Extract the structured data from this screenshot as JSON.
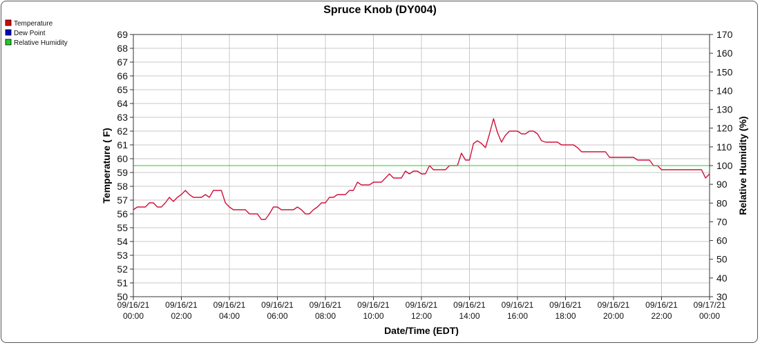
{
  "chart_data": {
    "type": "line",
    "title": "Spruce Knob (DY004)",
    "xlabel": "Date/Time (EDT)",
    "ylabel": "Temperature ( F)",
    "y2label": "Relative Humidity (%)",
    "ylim": [
      50,
      69
    ],
    "y2lim": [
      30,
      170
    ],
    "xlim": [
      "09/16/21 00:00",
      "09/17/21 00:00"
    ],
    "grid": true,
    "legend_position": "top-left",
    "x_ticks": [
      [
        "09/16/21",
        "00:00"
      ],
      [
        "09/16/21",
        "02:00"
      ],
      [
        "09/16/21",
        "04:00"
      ],
      [
        "09/16/21",
        "06:00"
      ],
      [
        "09/16/21",
        "08:00"
      ],
      [
        "09/16/21",
        "10:00"
      ],
      [
        "09/16/21",
        "12:00"
      ],
      [
        "09/16/21",
        "14:00"
      ],
      [
        "09/16/21",
        "16:00"
      ],
      [
        "09/16/21",
        "18:00"
      ],
      [
        "09/16/21",
        "20:00"
      ],
      [
        "09/16/21",
        "22:00"
      ],
      [
        "09/17/21",
        "00:00"
      ]
    ],
    "y_ticks": [
      50,
      51,
      52,
      53,
      54,
      55,
      56,
      57,
      58,
      59,
      60,
      61,
      62,
      63,
      64,
      65,
      66,
      67,
      68,
      69
    ],
    "y2_ticks": [
      30,
      40,
      50,
      60,
      70,
      80,
      90,
      100,
      110,
      120,
      130,
      140,
      150,
      160,
      170
    ],
    "legend": [
      {
        "name": "Temperature",
        "color": "#dd0000"
      },
      {
        "name": "Dew Point",
        "color": "#0000cc"
      },
      {
        "name": "Relative Humidity",
        "color": "#22cc22"
      }
    ],
    "series": [
      {
        "name": "Temperature",
        "axis": "left",
        "color": "#d0103a",
        "points": [
          [
            "00:00",
            56.3
          ],
          [
            "00:10",
            56.5
          ],
          [
            "00:20",
            56.5
          ],
          [
            "00:30",
            56.5
          ],
          [
            "00:40",
            56.8
          ],
          [
            "00:50",
            56.8
          ],
          [
            "01:00",
            56.5
          ],
          [
            "01:10",
            56.5
          ],
          [
            "01:20",
            56.8
          ],
          [
            "01:30",
            57.2
          ],
          [
            "01:40",
            56.9
          ],
          [
            "01:50",
            57.2
          ],
          [
            "02:00",
            57.4
          ],
          [
            "02:10",
            57.7
          ],
          [
            "02:20",
            57.4
          ],
          [
            "02:30",
            57.2
          ],
          [
            "02:40",
            57.2
          ],
          [
            "02:50",
            57.2
          ],
          [
            "03:00",
            57.4
          ],
          [
            "03:10",
            57.2
          ],
          [
            "03:20",
            57.7
          ],
          [
            "03:30",
            57.7
          ],
          [
            "03:40",
            57.7
          ],
          [
            "03:50",
            56.8
          ],
          [
            "04:00",
            56.5
          ],
          [
            "04:10",
            56.3
          ],
          [
            "04:20",
            56.3
          ],
          [
            "04:30",
            56.3
          ],
          [
            "04:40",
            56.3
          ],
          [
            "04:50",
            56.0
          ],
          [
            "05:00",
            56.0
          ],
          [
            "05:10",
            56.0
          ],
          [
            "05:20",
            55.6
          ],
          [
            "05:30",
            55.6
          ],
          [
            "05:40",
            56.0
          ],
          [
            "05:50",
            56.5
          ],
          [
            "06:00",
            56.5
          ],
          [
            "06:10",
            56.3
          ],
          [
            "06:20",
            56.3
          ],
          [
            "06:30",
            56.3
          ],
          [
            "06:40",
            56.3
          ],
          [
            "06:50",
            56.5
          ],
          [
            "07:00",
            56.3
          ],
          [
            "07:10",
            56.0
          ],
          [
            "07:20",
            56.0
          ],
          [
            "07:30",
            56.3
          ],
          [
            "07:40",
            56.5
          ],
          [
            "07:50",
            56.8
          ],
          [
            "08:00",
            56.8
          ],
          [
            "08:10",
            57.2
          ],
          [
            "08:20",
            57.2
          ],
          [
            "08:30",
            57.4
          ],
          [
            "08:40",
            57.4
          ],
          [
            "08:50",
            57.4
          ],
          [
            "09:00",
            57.7
          ],
          [
            "09:10",
            57.7
          ],
          [
            "09:20",
            58.3
          ],
          [
            "09:30",
            58.1
          ],
          [
            "09:40",
            58.1
          ],
          [
            "09:50",
            58.1
          ],
          [
            "10:00",
            58.3
          ],
          [
            "10:10",
            58.3
          ],
          [
            "10:20",
            58.3
          ],
          [
            "10:30",
            58.6
          ],
          [
            "10:40",
            58.9
          ],
          [
            "10:50",
            58.6
          ],
          [
            "11:00",
            58.6
          ],
          [
            "11:10",
            58.6
          ],
          [
            "11:20",
            59.1
          ],
          [
            "11:30",
            58.9
          ],
          [
            "11:40",
            59.1
          ],
          [
            "11:50",
            59.1
          ],
          [
            "12:00",
            58.9
          ],
          [
            "12:10",
            58.9
          ],
          [
            "12:20",
            59.5
          ],
          [
            "12:30",
            59.2
          ],
          [
            "12:40",
            59.2
          ],
          [
            "12:50",
            59.2
          ],
          [
            "13:00",
            59.2
          ],
          [
            "13:10",
            59.5
          ],
          [
            "13:20",
            59.5
          ],
          [
            "13:30",
            59.5
          ],
          [
            "13:40",
            60.4
          ],
          [
            "13:50",
            59.9
          ],
          [
            "14:00",
            59.9
          ],
          [
            "14:10",
            61.1
          ],
          [
            "14:20",
            61.3
          ],
          [
            "14:30",
            61.1
          ],
          [
            "14:40",
            60.8
          ],
          [
            "14:50",
            61.8
          ],
          [
            "15:00",
            62.9
          ],
          [
            "15:10",
            61.9
          ],
          [
            "15:20",
            61.2
          ],
          [
            "15:30",
            61.7
          ],
          [
            "15:40",
            62.0
          ],
          [
            "15:50",
            62.0
          ],
          [
            "16:00",
            62.0
          ],
          [
            "16:10",
            61.8
          ],
          [
            "16:20",
            61.8
          ],
          [
            "16:30",
            62.0
          ],
          [
            "16:40",
            62.0
          ],
          [
            "16:50",
            61.8
          ],
          [
            "17:00",
            61.3
          ],
          [
            "17:10",
            61.2
          ],
          [
            "17:20",
            61.2
          ],
          [
            "17:30",
            61.2
          ],
          [
            "17:40",
            61.2
          ],
          [
            "17:50",
            61.0
          ],
          [
            "18:00",
            61.0
          ],
          [
            "18:10",
            61.0
          ],
          [
            "18:20",
            61.0
          ],
          [
            "18:30",
            60.8
          ],
          [
            "18:40",
            60.5
          ],
          [
            "18:50",
            60.5
          ],
          [
            "19:00",
            60.5
          ],
          [
            "19:10",
            60.5
          ],
          [
            "19:20",
            60.5
          ],
          [
            "19:30",
            60.5
          ],
          [
            "19:40",
            60.5
          ],
          [
            "19:50",
            60.1
          ],
          [
            "20:00",
            60.1
          ],
          [
            "20:10",
            60.1
          ],
          [
            "20:20",
            60.1
          ],
          [
            "20:30",
            60.1
          ],
          [
            "20:40",
            60.1
          ],
          [
            "20:50",
            60.1
          ],
          [
            "21:00",
            59.9
          ],
          [
            "21:10",
            59.9
          ],
          [
            "21:20",
            59.9
          ],
          [
            "21:30",
            59.9
          ],
          [
            "21:40",
            59.5
          ],
          [
            "21:50",
            59.5
          ],
          [
            "22:00",
            59.2
          ],
          [
            "22:10",
            59.2
          ],
          [
            "22:20",
            59.2
          ],
          [
            "22:30",
            59.2
          ],
          [
            "22:40",
            59.2
          ],
          [
            "22:50",
            59.2
          ],
          [
            "23:00",
            59.2
          ],
          [
            "23:10",
            59.2
          ],
          [
            "23:20",
            59.2
          ],
          [
            "23:30",
            59.2
          ],
          [
            "23:40",
            59.2
          ],
          [
            "23:50",
            58.6
          ],
          [
            "24:00",
            58.9
          ]
        ]
      },
      {
        "name": "Dew Point",
        "axis": "left",
        "color": "#0000cc",
        "points": []
      },
      {
        "name": "Relative Humidity",
        "axis": "right",
        "color": "#22cc22",
        "points": [
          [
            "00:00",
            100
          ],
          [
            "24:00",
            100
          ]
        ]
      }
    ]
  }
}
